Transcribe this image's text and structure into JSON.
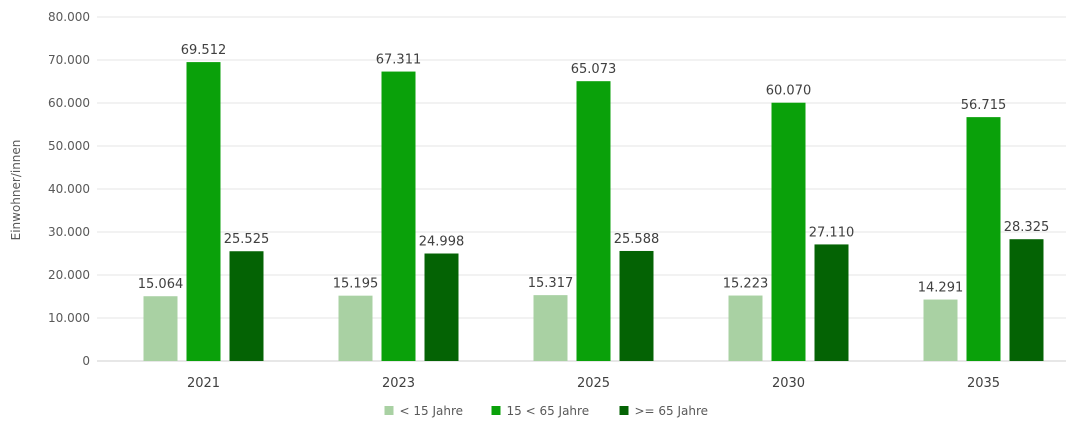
{
  "chart_data": {
    "type": "bar",
    "title": "",
    "xlabel": "",
    "ylabel": "Einwohner/innen",
    "categories": [
      "2021",
      "2023",
      "2025",
      "2030",
      "2035"
    ],
    "series": [
      {
        "name": "< 15 Jahre",
        "color": "#a9d1a3",
        "values": [
          15064,
          15195,
          15317,
          15223,
          14291
        ],
        "labels": [
          "15.064",
          "15.195",
          "15.317",
          "15.223",
          "14.291"
        ]
      },
      {
        "name": "15 < 65 Jahre",
        "color": "#0aa10a",
        "values": [
          69512,
          67311,
          65073,
          60070,
          56715
        ],
        "labels": [
          "69.512",
          "67.311",
          "65.073",
          "60.070",
          "56.715"
        ]
      },
      {
        "name": ">= 65 Jahre",
        "color": "#046304",
        "values": [
          25525,
          24998,
          25588,
          27110,
          28325
        ],
        "labels": [
          "25.525",
          "24.998",
          "25.588",
          "27.110",
          "28.325"
        ]
      }
    ],
    "ylim": [
      0,
      80000
    ],
    "yticks": [
      0,
      10000,
      20000,
      30000,
      40000,
      50000,
      60000,
      70000,
      80000
    ],
    "ytick_labels": [
      "0",
      "10.000",
      "20.000",
      "30.000",
      "40.000",
      "50.000",
      "60.000",
      "70.000",
      "80.000"
    ],
    "grid": true,
    "legend_position": "bottom"
  }
}
